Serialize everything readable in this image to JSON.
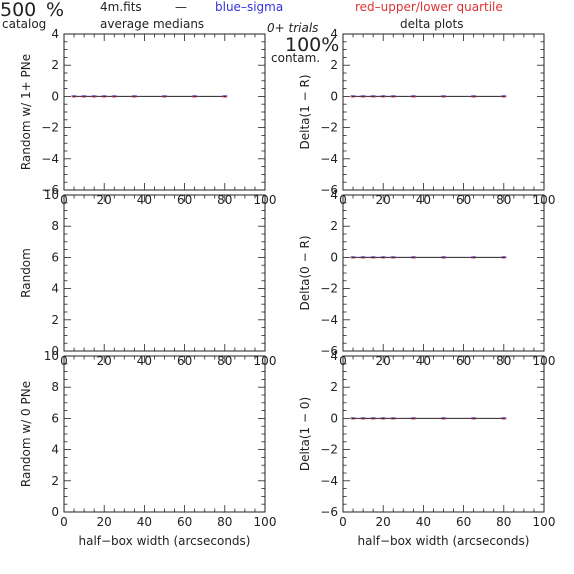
{
  "header": {
    "count": "500",
    "count_unit": "%",
    "catalog_label": "catalog",
    "file_name": "4m.fits",
    "dash": "—",
    "subtitle": "average medians",
    "blue_legend": "blue–sigma",
    "red_legend": "red–upper/lower quartile",
    "trials": "0+ trials",
    "contam_value": "100%",
    "contam_label": "contam.",
    "delta_title": "delta plots"
  },
  "colors": {
    "axis": "#222222",
    "blue": "#3333dd",
    "red": "#dd3333",
    "line": "#222222"
  },
  "chart_data": [
    {
      "type": "line",
      "xlabel": "",
      "ylabel": "Random w/ 1+ PNe",
      "xlim": [
        0,
        100
      ],
      "ylim": [
        -6,
        4
      ],
      "xticks": [
        0,
        20,
        40,
        60,
        80,
        100
      ],
      "yticks": [
        -6,
        -4,
        -2,
        0,
        2,
        4
      ],
      "series": [
        {
          "x": [
            5,
            10,
            15,
            20,
            25,
            35,
            50,
            65,
            80
          ],
          "values": [
            0,
            0,
            0,
            0,
            0,
            0,
            0,
            0,
            0
          ]
        }
      ]
    },
    {
      "type": "line",
      "xlabel": "",
      "ylabel": "Delta(1 − R)",
      "xlim": [
        0,
        100
      ],
      "ylim": [
        -6,
        4
      ],
      "xticks": [
        0,
        20,
        40,
        60,
        80,
        100
      ],
      "yticks": [
        -6,
        -4,
        -2,
        0,
        2,
        4
      ],
      "series": [
        {
          "x": [
            5,
            10,
            15,
            20,
            25,
            35,
            50,
            65,
            80
          ],
          "values": [
            0,
            0,
            0,
            0,
            0,
            0,
            0,
            0,
            0
          ]
        }
      ]
    },
    {
      "type": "line",
      "xlabel": "",
      "ylabel": "Random",
      "xlim": [
        0,
        100
      ],
      "ylim": [
        0,
        10
      ],
      "xticks": [
        0,
        20,
        40,
        60,
        80,
        100
      ],
      "yticks": [
        0,
        2,
        4,
        6,
        8,
        10
      ],
      "series": []
    },
    {
      "type": "line",
      "xlabel": "",
      "ylabel": "Delta(0 − R)",
      "xlim": [
        0,
        100
      ],
      "ylim": [
        -6,
        4
      ],
      "xticks": [
        0,
        20,
        40,
        60,
        80,
        100
      ],
      "yticks": [
        -6,
        -4,
        -2,
        0,
        2,
        4
      ],
      "series": [
        {
          "x": [
            5,
            10,
            15,
            20,
            25,
            35,
            50,
            65,
            80
          ],
          "values": [
            0,
            0,
            0,
            0,
            0,
            0,
            0,
            0,
            0
          ]
        }
      ]
    },
    {
      "type": "line",
      "xlabel": "half−box width (arcseconds)",
      "ylabel": "Random w/ 0 PNe",
      "xlim": [
        0,
        100
      ],
      "ylim": [
        0,
        10
      ],
      "xticks": [
        0,
        20,
        40,
        60,
        80,
        100
      ],
      "yticks": [
        0,
        2,
        4,
        6,
        8,
        10
      ],
      "series": []
    },
    {
      "type": "line",
      "xlabel": "half−box width (arcseconds)",
      "ylabel": "Delta(1 − 0)",
      "xlim": [
        0,
        100
      ],
      "ylim": [
        -6,
        4
      ],
      "xticks": [
        0,
        20,
        40,
        60,
        80,
        100
      ],
      "yticks": [
        -6,
        -4,
        -2,
        0,
        2,
        4
      ],
      "series": [
        {
          "x": [
            5,
            10,
            15,
            20,
            25,
            35,
            50,
            65,
            80
          ],
          "values": [
            0,
            0,
            0,
            0,
            0,
            0,
            0,
            0,
            0
          ]
        }
      ]
    }
  ]
}
